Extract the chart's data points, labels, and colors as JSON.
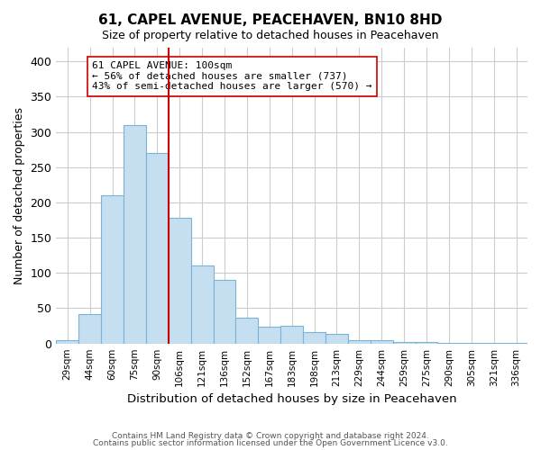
{
  "title": "61, CAPEL AVENUE, PEACEHAVEN, BN10 8HD",
  "subtitle": "Size of property relative to detached houses in Peacehaven",
  "xlabel": "Distribution of detached houses by size in Peacehaven",
  "ylabel": "Number of detached properties",
  "bar_labels": [
    "29sqm",
    "44sqm",
    "60sqm",
    "75sqm",
    "90sqm",
    "106sqm",
    "121sqm",
    "136sqm",
    "152sqm",
    "167sqm",
    "183sqm",
    "198sqm",
    "213sqm",
    "229sqm",
    "244sqm",
    "259sqm",
    "275sqm",
    "290sqm",
    "305sqm",
    "321sqm",
    "336sqm"
  ],
  "bar_values": [
    5,
    42,
    210,
    310,
    270,
    178,
    110,
    90,
    37,
    24,
    25,
    16,
    13,
    5,
    5,
    2,
    2,
    1,
    1,
    1,
    1
  ],
  "bar_color": "#c6dff0",
  "bar_edge_color": "#7ab3d4",
  "vline_color": "#cc0000",
  "annotation_title": "61 CAPEL AVENUE: 100sqm",
  "annotation_line1": "← 56% of detached houses are smaller (737)",
  "annotation_line2": "43% of semi-detached houses are larger (570) →",
  "annotation_box_color": "#ffffff",
  "annotation_box_edge_color": "#cc0000",
  "ylim": [
    0,
    420
  ],
  "yticks": [
    0,
    50,
    100,
    150,
    200,
    250,
    300,
    350,
    400
  ],
  "footer_line1": "Contains HM Land Registry data © Crown copyright and database right 2024.",
  "footer_line2": "Contains public sector information licensed under the Open Government Licence v3.0.",
  "background_color": "#ffffff",
  "grid_color": "#cccccc"
}
